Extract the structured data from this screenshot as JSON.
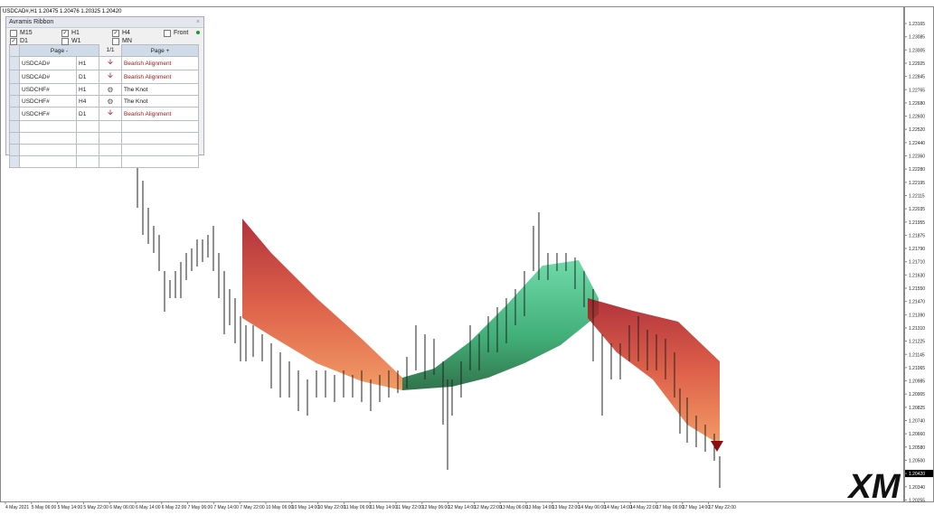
{
  "chart_header": "USDCAD#,H1  1.20475 1.20476 1.20325 1.20420",
  "panel": {
    "title": "Avramis Ribbon",
    "timeframes": [
      {
        "label": "M15",
        "checked": false
      },
      {
        "label": "H1",
        "checked": true
      },
      {
        "label": "H4",
        "checked": true
      },
      {
        "label": "Front",
        "checked": false
      },
      {
        "label": "D1",
        "checked": true
      },
      {
        "label": "W1",
        "checked": false
      },
      {
        "label": "MN",
        "checked": false
      }
    ],
    "pager": {
      "prev": "Page -",
      "page": "1/1",
      "next": "Page +"
    },
    "rows": [
      {
        "symbol": "USDCAD#",
        "timeframe": "H1",
        "icon": "arrow-down",
        "signal": "Bearish Alignment",
        "signal_color": "#a01818"
      },
      {
        "symbol": "USDCAD#",
        "timeframe": "D1",
        "icon": "arrow-down",
        "signal": "Bearish Alignment",
        "signal_color": "#a01818"
      },
      {
        "symbol": "USDCHF#",
        "timeframe": "H1",
        "icon": "knot",
        "signal": "The Knot",
        "signal_color": "#111111"
      },
      {
        "symbol": "USDCHF#",
        "timeframe": "H4",
        "icon": "knot",
        "signal": "The Knot",
        "signal_color": "#111111"
      },
      {
        "symbol": "USDCHF#",
        "timeframe": "D1",
        "icon": "arrow-down",
        "signal": "Bearish Alignment",
        "signal_color": "#a01818"
      }
    ]
  },
  "price_axis": {
    "labels": [
      "1.23165",
      "1.23085",
      "1.23005",
      "1.22925",
      "1.22845",
      "1.22765",
      "1.22680",
      "1.22600",
      "1.22520",
      "1.22440",
      "1.22360",
      "1.22280",
      "1.22195",
      "1.22115",
      "1.22035",
      "1.21955",
      "1.21875",
      "1.21790",
      "1.21710",
      "1.21630",
      "1.21550",
      "1.21470",
      "1.21390",
      "1.21310",
      "1.21225",
      "1.21145",
      "1.21065",
      "1.20985",
      "1.20905",
      "1.20825",
      "1.20740",
      "1.20660",
      "1.20580",
      "1.20500",
      {
        "label": "1.20420",
        "current": true
      },
      "1.20340",
      "1.20255"
    ]
  },
  "time_axis": {
    "labels": [
      "4 May 2021",
      "5 May 06:00",
      "5 May 14:00",
      "5 May 22:00",
      "6 May 06:00",
      "6 May 14:00",
      "6 May 22:00",
      "7 May 06:00",
      "7 May 14:00",
      "7 May 22:00",
      "10 May 06:00",
      "10 May 14:00",
      "10 May 22:00",
      "11 May 06:00",
      "11 May 14:00",
      "11 May 22:00",
      "12 May 06:00",
      "12 May 14:00",
      "12 May 22:00",
      "13 May 06:00",
      "13 May 14:00",
      "13 May 22:00",
      "14 May 06:00",
      "14 May 14:00",
      "14 May 22:00",
      "17 May 06:00",
      "17 May 14:00",
      "17 May 22:00"
    ]
  },
  "logo": "XM"
}
